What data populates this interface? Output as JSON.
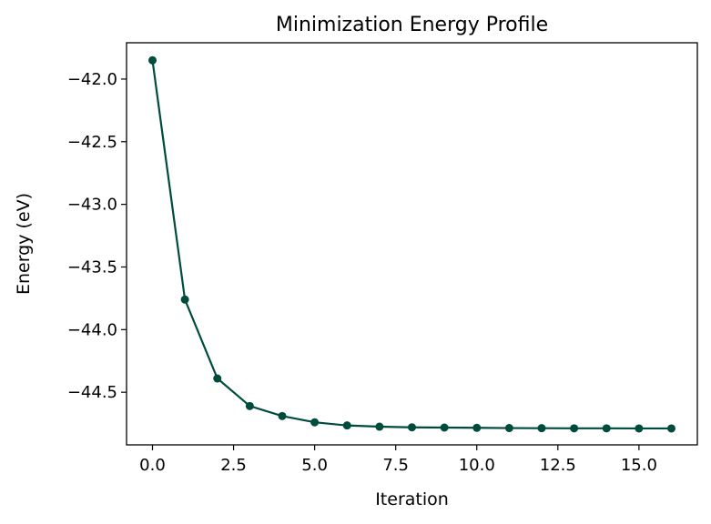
{
  "chart_data": {
    "type": "line",
    "title": "Minimization Energy Profile",
    "xlabel": "Iteration",
    "ylabel": "Energy (eV)",
    "series": [
      {
        "x": [
          0,
          1,
          2,
          3,
          4,
          5,
          6,
          7,
          8,
          9,
          10,
          11,
          12,
          13,
          14,
          15,
          16
        ],
        "values": [
          -41.85,
          -43.76,
          -44.39,
          -44.61,
          -44.69,
          -44.74,
          -44.765,
          -44.775,
          -44.78,
          -44.782,
          -44.784,
          -44.786,
          -44.787,
          -44.788,
          -44.788,
          -44.789,
          -44.789
        ]
      }
    ],
    "xlim": [
      -0.8,
      16.8
    ],
    "ylim": [
      -44.92,
      -41.71
    ],
    "xticks": [
      0.0,
      2.5,
      5.0,
      7.5,
      10.0,
      12.5,
      15.0
    ],
    "xtick_labels": [
      "0.0",
      "2.5",
      "5.0",
      "7.5",
      "10.0",
      "12.5",
      "15.0"
    ],
    "yticks": [
      -42.0,
      -42.5,
      -43.0,
      -43.5,
      -44.0,
      -44.5
    ],
    "ytick_labels": [
      "−42.0",
      "−42.5",
      "−43.0",
      "−43.5",
      "−44.0",
      "−44.5"
    ],
    "line_color": "#004c3c",
    "grid": false,
    "markers": true
  }
}
